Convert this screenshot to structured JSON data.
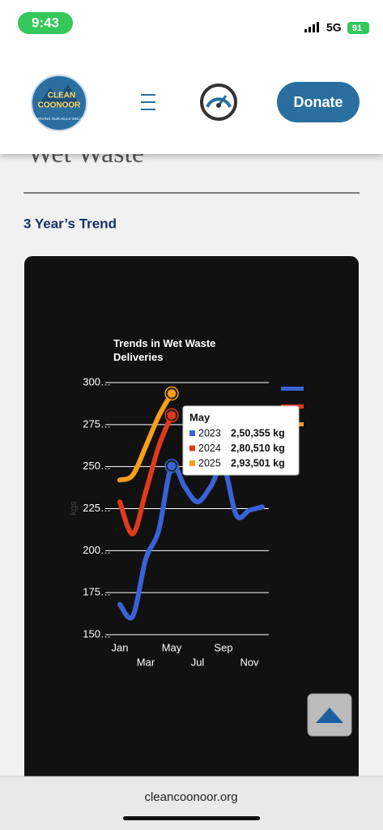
{
  "status_bar": {
    "time": "9:43",
    "network": "5G",
    "battery": "91"
  },
  "header": {
    "logo_top": "CLEAN",
    "logo_main": "COONOOR",
    "logo_tagline": "CONSERVING OUR HILLS SINCE 2014",
    "donate": "Donate"
  },
  "section": {
    "heading": "Wet Waste",
    "subheading": "3 Year’s Trend"
  },
  "chart_data": {
    "type": "line",
    "title": "Trends in Wet Waste Deliveries",
    "y_label": "kgs",
    "categories": [
      "Jan",
      null,
      "Mar",
      null,
      "May",
      null,
      "Jul",
      null,
      "Sep",
      null,
      "Nov",
      null
    ],
    "series": [
      {
        "name": "2023",
        "color": "#3a62d6",
        "values": [
          168000,
          161000,
          195000,
          212000,
          250355,
          238000,
          229000,
          238000,
          250000,
          221000,
          224000,
          226000
        ],
        "value_labels": [
          null,
          null,
          null,
          null,
          "2,50,355 kg",
          null,
          null,
          null,
          null,
          null,
          null,
          null
        ]
      },
      {
        "name": "2024",
        "color": "#e03a1e",
        "values": [
          229000,
          210000,
          235000,
          262000,
          280510,
          null,
          null,
          null,
          null,
          null,
          null,
          null
        ],
        "value_labels": [
          null,
          null,
          null,
          null,
          "2,80,510 kg",
          null,
          null,
          null,
          null,
          null,
          null,
          null
        ]
      },
      {
        "name": "2025",
        "color": "#f99d1c",
        "values": [
          242000,
          245000,
          262000,
          280000,
          293501,
          null,
          null,
          null,
          null,
          null,
          null,
          null
        ],
        "value_labels": [
          null,
          null,
          null,
          null,
          "2,93,501 kg",
          null,
          null,
          null,
          null,
          null,
          null,
          null
        ]
      }
    ],
    "ylim": [
      150000,
      300000
    ],
    "yticks": [
      {
        "value": 150000,
        "label": "150…"
      },
      {
        "value": 175000,
        "label": "175…"
      },
      {
        "value": 200000,
        "label": "200…"
      },
      {
        "value": 225000,
        "label": "225…"
      },
      {
        "value": 250000,
        "label": "250…"
      },
      {
        "value": 275000,
        "label": "275…"
      },
      {
        "value": 300000,
        "label": "300…"
      }
    ],
    "grid": true,
    "tooltip_index": 4
  },
  "footer": {
    "url": "cleancoonoor.org"
  }
}
